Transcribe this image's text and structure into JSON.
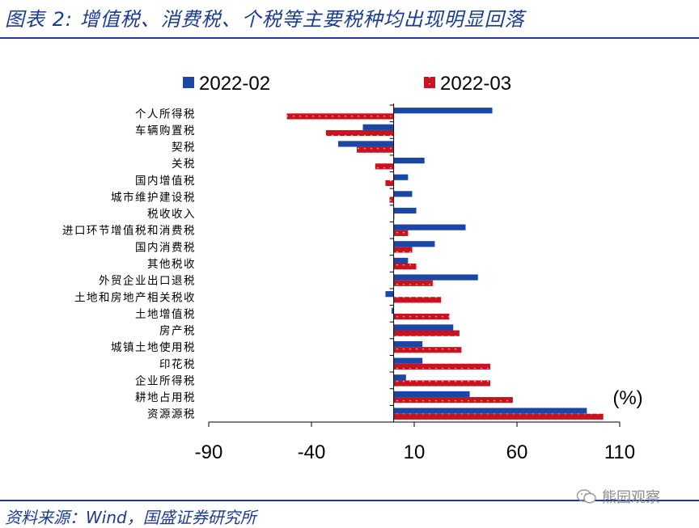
{
  "title": "图表 2: 增值税、消费税、个税等主要税种均出现明显回落",
  "source": "资料来源：Wind，国盛证券研究所",
  "watermark": "熊园观察",
  "colors": {
    "series_0": "#1a47a6",
    "series_1": "#c8141e",
    "axis": "#000000",
    "title": "#1a3d8f"
  },
  "chart_data": {
    "type": "bar",
    "orientation": "horizontal",
    "categories": [
      "个人所得税",
      "车辆购置税",
      "契税",
      "关税",
      "国内增值税",
      "城市维护建设税",
      "税收收入",
      "进口环节增值税和消费税",
      "国内消费税",
      "其他税收",
      "外贸企业出口退税",
      "土地和房地产相关税收",
      "土地增值税",
      "房产税",
      "城镇土地使用税",
      "印花税",
      "企业所得税",
      "耕地占用税",
      "资源源税"
    ],
    "series": [
      {
        "name": "2022-02",
        "values": [
          48,
          -15,
          -27,
          15,
          7,
          9,
          11,
          35,
          20,
          7,
          41,
          -4,
          -1,
          29,
          14,
          14,
          6,
          37,
          94
        ]
      },
      {
        "name": "2022-03",
        "values": [
          -52,
          -33,
          -18,
          -9,
          -4,
          -2,
          0,
          7,
          9,
          11,
          19,
          23,
          27,
          32,
          33,
          47,
          47,
          58,
          102
        ]
      }
    ],
    "xlim": [
      -90,
      110
    ],
    "xticks": [
      -90,
      -40,
      10,
      60,
      110
    ],
    "unit_label": "(%)",
    "legend_position": "top"
  }
}
